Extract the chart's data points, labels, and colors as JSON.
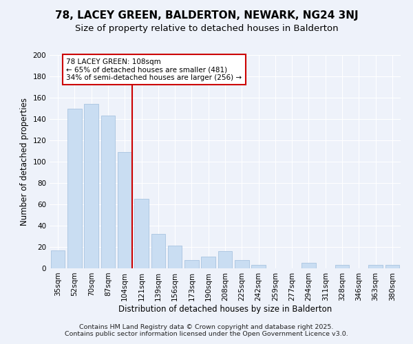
{
  "title": "78, LACEY GREEN, BALDERTON, NEWARK, NG24 3NJ",
  "subtitle": "Size of property relative to detached houses in Balderton",
  "xlabel": "Distribution of detached houses by size in Balderton",
  "ylabel": "Number of detached properties",
  "categories": [
    "35sqm",
    "52sqm",
    "70sqm",
    "87sqm",
    "104sqm",
    "121sqm",
    "139sqm",
    "156sqm",
    "173sqm",
    "190sqm",
    "208sqm",
    "225sqm",
    "242sqm",
    "259sqm",
    "277sqm",
    "294sqm",
    "311sqm",
    "328sqm",
    "346sqm",
    "363sqm",
    "380sqm"
  ],
  "values": [
    17,
    150,
    154,
    143,
    109,
    65,
    32,
    21,
    8,
    11,
    16,
    8,
    3,
    0,
    0,
    5,
    0,
    3,
    0,
    3,
    3
  ],
  "bar_color": "#c9ddf2",
  "bar_edge_color": "#a8c4e0",
  "marker_index": 4,
  "marker_line_color": "#cc0000",
  "annotation_text": "78 LACEY GREEN: 108sqm\n← 65% of detached houses are smaller (481)\n34% of semi-detached houses are larger (256) →",
  "annotation_box_color": "#ffffff",
  "annotation_box_edge_color": "#cc0000",
  "ylim": [
    0,
    200
  ],
  "yticks": [
    0,
    20,
    40,
    60,
    80,
    100,
    120,
    140,
    160,
    180,
    200
  ],
  "footer1": "Contains HM Land Registry data © Crown copyright and database right 2025.",
  "footer2": "Contains public sector information licensed under the Open Government Licence v3.0.",
  "bg_color": "#eef2fa",
  "plot_bg_color": "#eef2fa",
  "grid_color": "#ffffff",
  "title_fontsize": 11,
  "subtitle_fontsize": 9.5,
  "axis_label_fontsize": 8.5,
  "tick_fontsize": 7.5,
  "footer_fontsize": 6.8,
  "annotation_fontsize": 7.5
}
